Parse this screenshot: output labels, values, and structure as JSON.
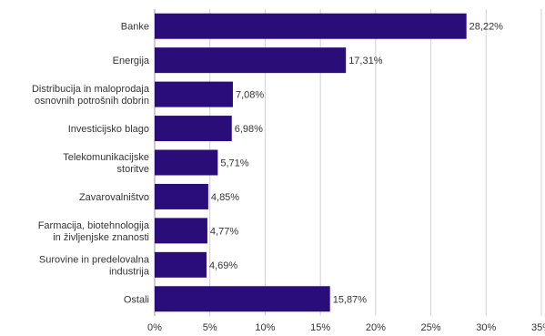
{
  "chart_data": {
    "type": "bar",
    "orientation": "horizontal",
    "categories": [
      [
        "Banke"
      ],
      [
        "Energija"
      ],
      [
        "Distribucija in maloprodaja",
        "osnovnih potrošnih dobrin"
      ],
      [
        "Investicijsko blago"
      ],
      [
        "Telekomunikacijske",
        "storitve"
      ],
      [
        "Zavarovalništvo"
      ],
      [
        "Farmacija, biotehnologija",
        "in življenjske znanosti"
      ],
      [
        "Surovine in predelovalna",
        "industrija"
      ],
      [
        "Ostali"
      ]
    ],
    "values": [
      28.22,
      17.31,
      7.08,
      6.98,
      5.71,
      4.85,
      4.77,
      4.69,
      15.87
    ],
    "value_labels": [
      "28,22%",
      "17,31%",
      "7,08%",
      "6,98%",
      "5,71%",
      "4,85%",
      "4,77%",
      "4,69%",
      "15,87%"
    ],
    "xlim": [
      0,
      35
    ],
    "x_ticks": [
      0,
      5,
      10,
      15,
      20,
      25,
      30,
      35
    ],
    "x_tick_labels": [
      "0%",
      "5%",
      "10%",
      "15%",
      "20%",
      "25%",
      "30%",
      "35%"
    ],
    "grid": "vertical",
    "colors": {
      "bar": "#2a0d78",
      "grid": "#d0d0d0",
      "axis": "#999999",
      "text": "#333333"
    }
  }
}
